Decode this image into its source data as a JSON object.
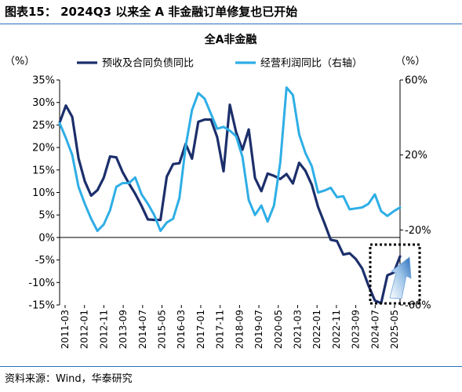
{
  "figure_title": "图表15： 2024Q3 以来全 A 非金融订单修复也已开始",
  "source": "资料来源：Wind，华泰研究",
  "chart_data": {
    "type": "line",
    "title": "全A非金融",
    "left_unit": "（%）",
    "right_unit": "（%）",
    "y_left": {
      "min": -15,
      "max": 35,
      "ticks": [
        35,
        30,
        25,
        20,
        15,
        10,
        5,
        0,
        -5,
        -10,
        -15
      ],
      "tick_labels": [
        "35%",
        "30%",
        "25%",
        "20%",
        "15%",
        "10%",
        "5%",
        "0%",
        "-5%",
        "-10%",
        "-15%"
      ]
    },
    "y_right": {
      "min": -60,
      "max": 60,
      "ticks": [
        60,
        20,
        -20,
        -60
      ],
      "tick_labels": [
        "60%",
        "20%",
        "-20%",
        "-60%"
      ]
    },
    "x_tick_labels": [
      "2011-03",
      "2012-01",
      "2012-11",
      "2013-09",
      "2014-07",
      "2015-05",
      "2016-03",
      "2017-01",
      "2017-11",
      "2018-09",
      "2019-07",
      "2020-05",
      "2021-03",
      "2022-01",
      "2022-11",
      "2023-09",
      "2024-07",
      "2025-05"
    ],
    "legend_position": "top",
    "series": [
      {
        "name": "预收及合同负债同比",
        "axis": "left",
        "color": "#1c2f6b",
        "values": [
          25.5,
          29.3,
          26.8,
          17.6,
          12.5,
          9.3,
          10.5,
          13.3,
          18.0,
          17.8,
          14.5,
          12.0,
          9.7,
          7.0,
          4.0,
          3.9,
          3.9,
          13.5,
          16.3,
          16.5,
          20.8,
          17.5,
          25.7,
          26.2,
          26.2,
          22.3,
          14.7,
          29.5,
          23.4,
          19.5,
          24.0,
          13.2,
          10.3,
          14.2,
          13.7,
          13.0,
          14.1,
          12.0,
          16.6,
          14.8,
          11.7,
          6.8,
          3.2,
          -0.5,
          -0.8,
          -3.8,
          -3.5,
          -4.8,
          -6.9,
          -10.7,
          -14.0,
          -14.6,
          -8.4,
          -7.8,
          -4.2
        ]
      },
      {
        "name": "经营利润同比（右轴）",
        "axis": "right",
        "color": "#2eaee6",
        "values": [
          37.0,
          29.0,
          20.0,
          3.0,
          -6.0,
          -14.0,
          -20.5,
          -17.0,
          -9.5,
          3.0,
          5.0,
          5.0,
          8.0,
          -1.0,
          -6.0,
          -12.0,
          -20.5,
          -16.0,
          -14.0,
          -3.0,
          24.5,
          44.0,
          53.0,
          50.0,
          42.0,
          34.0,
          35.0,
          33.0,
          30.0,
          19.0,
          -4.0,
          -12.0,
          -7.0,
          -15.5,
          -7.0,
          16.0,
          56.0,
          52.0,
          31.0,
          21.0,
          14.0,
          0.0,
          1.0,
          2.5,
          -2.5,
          -2.0,
          -9.0,
          -8.5,
          -8.0,
          -6.0,
          -1.0,
          -10.0,
          -12.5,
          -10.0,
          -8.0
        ]
      }
    ],
    "annotation": "dashed box with upward arrow over the 2024-2025 rebound"
  }
}
